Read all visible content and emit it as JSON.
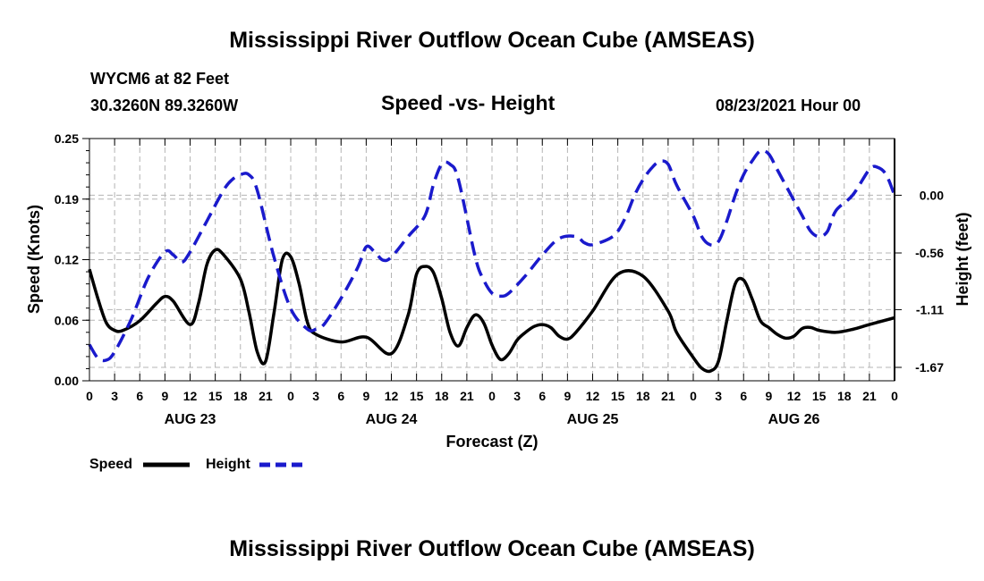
{
  "header": {
    "title": "Mississippi River Outflow Ocean Cube (AMSEAS)",
    "station": "WYCM6 at 82 Feet",
    "coords": "30.3260N  89.3260W",
    "subtitle": "Speed -vs- Height",
    "date": "08/23/2021 Hour 00"
  },
  "footer": {
    "title": "Mississippi River Outflow Ocean Cube (AMSEAS)"
  },
  "legend": {
    "speed_label": "Speed",
    "height_label": "Height"
  },
  "colors": {
    "speed": "#000000",
    "height": "#1a1acc",
    "grid": "#b4b4b4"
  },
  "chart_data": {
    "type": "line",
    "xlabel": "Forecast (Z)",
    "ylabel_left": "Speed (Knots)",
    "ylabel_right": "Height (feet)",
    "x_unit": "hours from 08/23/2021 00Z",
    "xlim": [
      0,
      96
    ],
    "ylim_left": [
      0,
      0.25
    ],
    "ylim_right": [
      -1.8,
      0.55
    ],
    "x_ticks": [
      0,
      3,
      6,
      9,
      12,
      15,
      18,
      21,
      24,
      27,
      30,
      33,
      36,
      39,
      42,
      45,
      48,
      51,
      54,
      57,
      60,
      63,
      66,
      69,
      72,
      75,
      78,
      81,
      84,
      87,
      90,
      93,
      96
    ],
    "x_tick_labels": [
      "0",
      "3",
      "6",
      "9",
      "12",
      "15",
      "18",
      "21",
      "0",
      "3",
      "6",
      "9",
      "12",
      "15",
      "18",
      "21",
      "0",
      "3",
      "6",
      "9",
      "12",
      "15",
      "18",
      "21",
      "0",
      "3",
      "6",
      "9",
      "12",
      "15",
      "18",
      "21",
      "0"
    ],
    "day_labels": [
      {
        "hour": 12,
        "label": "AUG 23"
      },
      {
        "hour": 36,
        "label": "AUG 24"
      },
      {
        "hour": 60,
        "label": "AUG 25"
      },
      {
        "hour": 84,
        "label": "AUG 26"
      }
    ],
    "y_left_ticks": [
      {
        "value": 0.0,
        "label": "0.00"
      },
      {
        "value": 0.0625,
        "label": "0.06"
      },
      {
        "value": 0.125,
        "label": "0.12"
      },
      {
        "value": 0.1875,
        "label": "0.19"
      },
      {
        "value": 0.25,
        "label": "0.25"
      }
    ],
    "y_right_ticks": [
      {
        "value": 0.0,
        "label": "0.00"
      },
      {
        "value": -0.56,
        "label": "-0.56"
      },
      {
        "value": -1.11,
        "label": "-1.11"
      },
      {
        "value": -1.67,
        "label": "-1.67"
      }
    ],
    "series": [
      {
        "name": "Speed",
        "axis": "left",
        "style": "solid",
        "x": [
          0,
          1,
          2,
          3,
          4,
          6,
          8,
          9,
          10,
          12,
          13,
          14,
          15,
          16,
          18,
          19,
          20,
          21,
          22,
          23,
          24,
          25,
          26,
          27,
          30,
          33,
          36,
          38,
          39,
          40,
          41,
          42,
          43,
          44,
          45,
          46,
          47,
          48,
          49,
          50,
          51,
          52,
          53,
          54,
          55,
          56,
          57,
          58,
          60,
          63,
          66,
          69,
          70,
          72,
          73,
          74,
          75,
          76,
          77,
          78,
          79,
          80,
          81,
          82,
          83,
          84,
          85,
          86,
          87,
          89,
          91,
          93,
          96
        ],
        "values": [
          0.115,
          0.085,
          0.06,
          0.052,
          0.052,
          0.062,
          0.08,
          0.087,
          0.082,
          0.058,
          0.08,
          0.12,
          0.135,
          0.13,
          0.105,
          0.072,
          0.03,
          0.02,
          0.07,
          0.125,
          0.128,
          0.1,
          0.06,
          0.048,
          0.04,
          0.045,
          0.028,
          0.068,
          0.11,
          0.118,
          0.112,
          0.085,
          0.05,
          0.036,
          0.055,
          0.068,
          0.06,
          0.037,
          0.022,
          0.028,
          0.042,
          0.05,
          0.056,
          0.058,
          0.055,
          0.046,
          0.043,
          0.05,
          0.072,
          0.11,
          0.108,
          0.072,
          0.05,
          0.024,
          0.013,
          0.01,
          0.02,
          0.062,
          0.1,
          0.104,
          0.085,
          0.062,
          0.055,
          0.048,
          0.044,
          0.046,
          0.054,
          0.055,
          0.052,
          0.05,
          0.053,
          0.058,
          0.065
        ]
      },
      {
        "name": "Height",
        "axis": "right",
        "style": "dashed",
        "x": [
          0,
          1,
          2,
          3,
          5,
          7,
          9,
          10,
          11,
          12,
          14,
          16,
          17,
          18,
          19,
          20,
          22,
          24,
          26,
          27,
          28,
          30,
          32,
          33,
          34,
          35,
          36,
          38,
          40,
          41,
          42,
          43,
          44,
          46,
          47,
          48,
          49,
          50,
          52,
          54,
          56,
          58,
          59,
          60,
          62,
          63,
          64,
          65,
          66,
          67,
          68,
          69,
          70,
          72,
          73,
          74,
          75,
          76,
          77,
          78,
          79,
          80,
          81,
          82,
          83,
          84,
          85,
          86,
          87,
          88,
          89,
          91,
          93,
          94,
          95,
          96
        ],
        "values": [
          -1.45,
          -1.58,
          -1.6,
          -1.52,
          -1.2,
          -0.8,
          -0.55,
          -0.58,
          -0.65,
          -0.55,
          -0.25,
          0.05,
          0.15,
          0.2,
          0.2,
          0.05,
          -0.6,
          -1.1,
          -1.3,
          -1.3,
          -1.25,
          -1.0,
          -0.7,
          -0.5,
          -0.55,
          -0.63,
          -0.6,
          -0.4,
          -0.2,
          0.1,
          0.3,
          0.3,
          0.15,
          -0.6,
          -0.82,
          -0.95,
          -0.98,
          -0.95,
          -0.78,
          -0.58,
          -0.42,
          -0.4,
          -0.46,
          -0.48,
          -0.42,
          -0.35,
          -0.2,
          0.0,
          0.15,
          0.26,
          0.33,
          0.3,
          0.1,
          -0.2,
          -0.4,
          -0.48,
          -0.45,
          -0.25,
          0.0,
          0.2,
          0.33,
          0.43,
          0.4,
          0.25,
          0.1,
          -0.05,
          -0.2,
          -0.35,
          -0.4,
          -0.35,
          -0.15,
          0.0,
          0.25,
          0.27,
          0.2,
          0.0
        ]
      }
    ]
  }
}
